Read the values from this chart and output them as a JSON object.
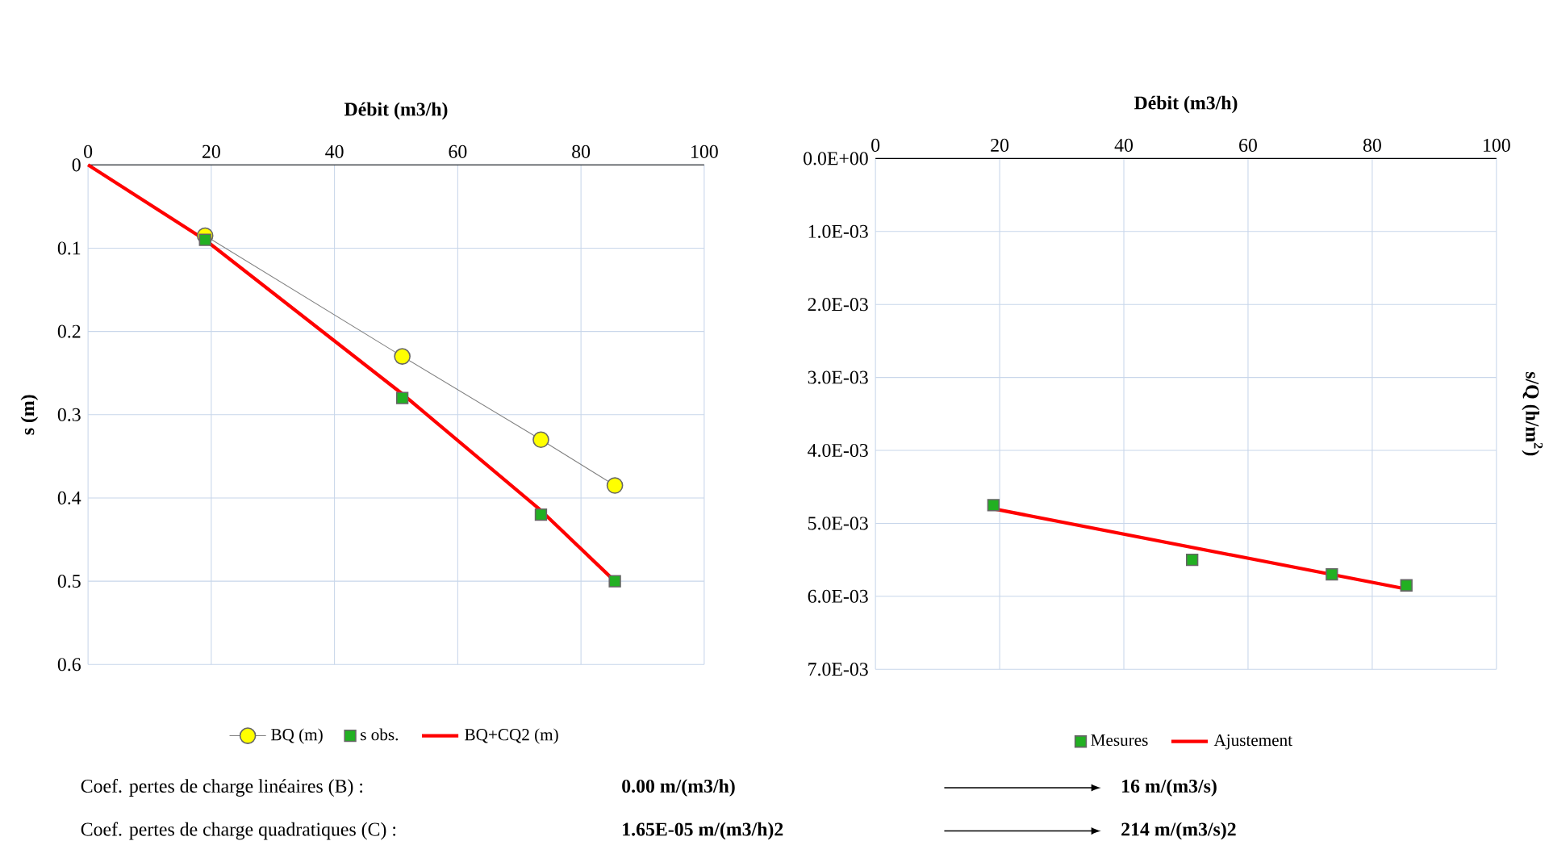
{
  "chart_data": [
    {
      "type": "line",
      "xlabel": "Débit (m3/h)",
      "ylabel": "s (m)",
      "x": [
        19,
        51,
        73.5,
        85.5
      ],
      "series": [
        {
          "name": "BQ (m)",
          "marker": "circle",
          "color": "#ffff00",
          "values": [
            0.085,
            0.23,
            0.33,
            0.385
          ]
        },
        {
          "name": "s obs.",
          "type": "scatter",
          "marker": "square",
          "color": "#22b022",
          "values": [
            0.09,
            0.28,
            0.42,
            0.5
          ]
        },
        {
          "name": "BQ+CQ2 (m)",
          "marker": "none",
          "color": "#ff0000",
          "x": [
            0,
            19,
            51,
            73.5,
            85.5
          ],
          "values": [
            0,
            0.09,
            0.275,
            0.415,
            0.5
          ]
        }
      ],
      "xlim": [
        0,
        100
      ],
      "xticks": [
        0,
        20,
        40,
        60,
        80,
        100
      ],
      "ylim": [
        0.6,
        0
      ],
      "yticks": [
        0,
        0.1,
        0.2,
        0.3,
        0.4,
        0.5,
        0.6
      ],
      "grid": true,
      "legend": "bottom",
      "annotations": [
        "Coef. pertes de charge linéaires (B) :",
        "0.00 m/(m3/h)",
        "16 m/(m3/s)",
        "Coef. pertes de charge quadratiques  (C) :",
        "1.65E-05 m/(m3/h)2",
        "214  m/(m3/s)2"
      ]
    },
    {
      "type": "line",
      "xlabel": "Débit (m3/h)",
      "ylabel": "s/Q (h/m$^{2}$)",
      "x": [
        19,
        51,
        73.5,
        85.5
      ],
      "series": [
        {
          "name": "Mesures",
          "type": "scatter",
          "marker": "square",
          "color": "#22b022",
          "values": [
            0.00475,
            0.0055,
            0.0057,
            0.00585
          ]
        },
        {
          "name": "Ajustement",
          "marker": "none",
          "color": "#ff0000",
          "x": [
            19,
            85.5
          ],
          "values": [
            0.0048,
            0.0059
          ]
        }
      ],
      "xlim": [
        0,
        100
      ],
      "xticks": [
        0,
        20,
        40,
        60,
        80,
        100
      ],
      "ylim": [
        0.007,
        0
      ],
      "yticks": [
        {
          "value": 0,
          "label": "0.0E+00"
        },
        {
          "value": 0.001,
          "label": "1.0E-03"
        },
        {
          "value": 0.002,
          "label": "2.0E-03"
        },
        {
          "value": 0.003,
          "label": "3.0E-03"
        },
        {
          "value": 0.004,
          "label": "4.0E-03"
        },
        {
          "value": 0.005,
          "label": "5.0E-03"
        },
        {
          "value": 0.006,
          "label": "6.0E-03"
        },
        {
          "value": 0.007,
          "label": "7.0E-03"
        }
      ],
      "grid": true,
      "legend": "bottom"
    }
  ]
}
